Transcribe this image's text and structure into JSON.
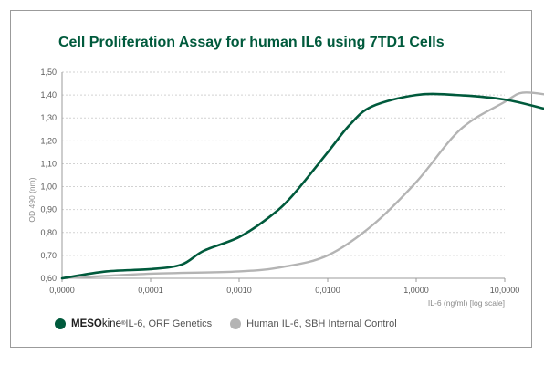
{
  "chart_data": {
    "type": "line",
    "title": "Cell Proliferation Assay for human IL6 using 7TD1 Cells",
    "xlabel": "IL-6 (ng/ml)  [log scale]",
    "ylabel": "OD 490 (nm)",
    "x_scale": "log",
    "x_ticks": [
      "0,0000",
      "0,0001",
      "0,0010",
      "0,0100",
      "1,0000",
      "10,0000"
    ],
    "y_ticks": [
      "0,60",
      "0,70",
      "0,80",
      "0,90",
      "1,00",
      "1,10",
      "1,20",
      "1,30",
      "1,40",
      "1,50"
    ],
    "ylim": [
      0.6,
      1.5
    ],
    "grid": "horizontal",
    "legend_position": "bottom-left",
    "series": [
      {
        "name": "MESOkine IL-6, ORF Genetics",
        "legend_parts": {
          "brand_bold": "MESO",
          "brand_light": "kine",
          "reg": "®",
          "rest": " IL-6, ORF Genetics"
        },
        "color": "#005a3c",
        "points": [
          [
            0,
            0.6
          ],
          [
            0.5,
            0.63
          ],
          [
            1.0,
            0.64
          ],
          [
            1.35,
            0.66
          ],
          [
            1.6,
            0.72
          ],
          [
            2.0,
            0.78
          ],
          [
            2.35,
            0.87
          ],
          [
            2.6,
            0.96
          ],
          [
            3.0,
            1.15
          ],
          [
            3.25,
            1.27
          ],
          [
            3.5,
            1.35
          ],
          [
            4.0,
            1.4
          ],
          [
            4.45,
            1.4
          ],
          [
            5.0,
            1.38
          ],
          [
            5.45,
            1.34
          ]
        ]
      },
      {
        "name": "Human IL-6, SBH Internal Control",
        "color": "#b4b4b4",
        "points": [
          [
            0,
            0.6
          ],
          [
            1.0,
            0.62
          ],
          [
            2.0,
            0.63
          ],
          [
            2.5,
            0.65
          ],
          [
            3.0,
            0.7
          ],
          [
            3.5,
            0.83
          ],
          [
            4.0,
            1.02
          ],
          [
            4.5,
            1.25
          ],
          [
            5.0,
            1.37
          ],
          [
            5.2,
            1.41
          ],
          [
            5.5,
            1.4
          ],
          [
            5.6,
            1.39
          ]
        ]
      }
    ]
  }
}
